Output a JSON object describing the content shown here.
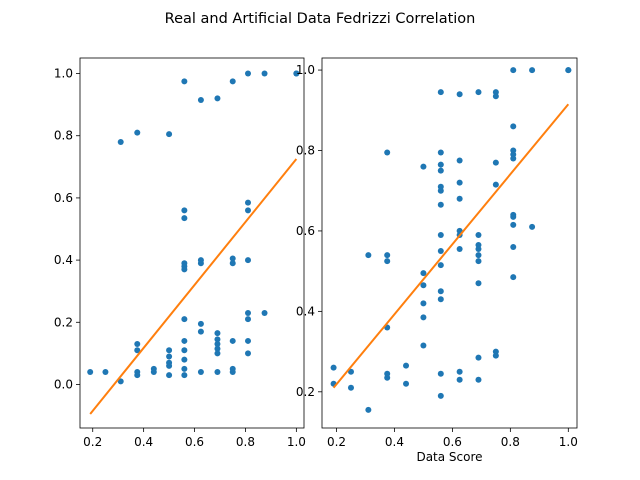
{
  "title": "Real and Artificial Data Fedrizzi Correlation",
  "colors": {
    "points": "#1f77b4",
    "fit": "#ff7f0e"
  },
  "chart_data": [
    {
      "type": "scatter",
      "xlabel": "",
      "ylabel": "",
      "xlim": [
        0.15,
        1.03
      ],
      "ylim": [
        -0.14,
        1.05
      ],
      "xticks": [
        0.2,
        0.4,
        0.6,
        0.8,
        1.0
      ],
      "xtick_labels": [
        "0.2",
        "0.4",
        "0.6",
        "0.8",
        "1.0"
      ],
      "yticks": [
        0.0,
        0.2,
        0.4,
        0.6,
        0.8,
        1.0
      ],
      "ytick_labels": [
        "0.0",
        "0.2",
        "0.4",
        "0.6",
        "0.8",
        "1.0"
      ],
      "points": [
        [
          0.19,
          0.04
        ],
        [
          0.25,
          0.04
        ],
        [
          0.31,
          0.01
        ],
        [
          0.31,
          0.78
        ],
        [
          0.375,
          0.81
        ],
        [
          0.375,
          0.04
        ],
        [
          0.375,
          0.03
        ],
        [
          0.375,
          0.11
        ],
        [
          0.375,
          0.13
        ],
        [
          0.44,
          0.05
        ],
        [
          0.44,
          0.04
        ],
        [
          0.5,
          0.805
        ],
        [
          0.5,
          0.03
        ],
        [
          0.5,
          0.06
        ],
        [
          0.5,
          0.07
        ],
        [
          0.5,
          0.09
        ],
        [
          0.5,
          0.11
        ],
        [
          0.56,
          0.975
        ],
        [
          0.56,
          0.56
        ],
        [
          0.56,
          0.535
        ],
        [
          0.56,
          0.39
        ],
        [
          0.56,
          0.38
        ],
        [
          0.56,
          0.37
        ],
        [
          0.56,
          0.21
        ],
        [
          0.56,
          0.14
        ],
        [
          0.56,
          0.11
        ],
        [
          0.56,
          0.08
        ],
        [
          0.56,
          0.05
        ],
        [
          0.56,
          0.03
        ],
        [
          0.625,
          0.915
        ],
        [
          0.625,
          0.4
        ],
        [
          0.625,
          0.39
        ],
        [
          0.625,
          0.195
        ],
        [
          0.625,
          0.17
        ],
        [
          0.625,
          0.04
        ],
        [
          0.69,
          0.92
        ],
        [
          0.69,
          0.165
        ],
        [
          0.69,
          0.145
        ],
        [
          0.69,
          0.13
        ],
        [
          0.69,
          0.115
        ],
        [
          0.69,
          0.1
        ],
        [
          0.69,
          0.04
        ],
        [
          0.75,
          0.975
        ],
        [
          0.75,
          0.405
        ],
        [
          0.75,
          0.39
        ],
        [
          0.75,
          0.14
        ],
        [
          0.75,
          0.05
        ],
        [
          0.75,
          0.04
        ],
        [
          0.81,
          1.0
        ],
        [
          0.81,
          0.585
        ],
        [
          0.81,
          0.56
        ],
        [
          0.81,
          0.4
        ],
        [
          0.81,
          0.23
        ],
        [
          0.81,
          0.21
        ],
        [
          0.81,
          0.14
        ],
        [
          0.81,
          0.1
        ],
        [
          0.875,
          1.0
        ],
        [
          0.875,
          0.23
        ],
        [
          1.0,
          1.0
        ],
        [
          1.0,
          1.0
        ]
      ],
      "fit_line": {
        "x": [
          0.19,
          1.0
        ],
        "y": [
          -0.095,
          0.725
        ]
      }
    },
    {
      "type": "scatter",
      "xlabel": "Data Score",
      "ylabel": "",
      "xlim": [
        0.15,
        1.03
      ],
      "ylim": [
        0.11,
        1.03
      ],
      "xticks": [
        0.2,
        0.4,
        0.6,
        0.8,
        1.0
      ],
      "xtick_labels": [
        "0.2",
        "0.4",
        "0.6",
        "0.8",
        "1.0"
      ],
      "yticks": [
        0.2,
        0.4,
        0.6,
        0.8,
        1.0
      ],
      "ytick_labels": [
        "0.2",
        "0.4",
        "0.6",
        "0.8",
        "1.0"
      ],
      "points": [
        [
          0.19,
          0.26
        ],
        [
          0.19,
          0.22
        ],
        [
          0.25,
          0.25
        ],
        [
          0.25,
          0.21
        ],
        [
          0.31,
          0.54
        ],
        [
          0.31,
          0.155
        ],
        [
          0.375,
          0.795
        ],
        [
          0.375,
          0.54
        ],
        [
          0.375,
          0.525
        ],
        [
          0.375,
          0.36
        ],
        [
          0.375,
          0.245
        ],
        [
          0.375,
          0.235
        ],
        [
          0.44,
          0.265
        ],
        [
          0.44,
          0.22
        ],
        [
          0.5,
          0.76
        ],
        [
          0.5,
          0.495
        ],
        [
          0.5,
          0.465
        ],
        [
          0.5,
          0.42
        ],
        [
          0.5,
          0.385
        ],
        [
          0.5,
          0.315
        ],
        [
          0.56,
          0.945
        ],
        [
          0.56,
          0.795
        ],
        [
          0.56,
          0.765
        ],
        [
          0.56,
          0.75
        ],
        [
          0.56,
          0.71
        ],
        [
          0.56,
          0.7
        ],
        [
          0.56,
          0.665
        ],
        [
          0.56,
          0.59
        ],
        [
          0.56,
          0.55
        ],
        [
          0.56,
          0.515
        ],
        [
          0.56,
          0.45
        ],
        [
          0.56,
          0.43
        ],
        [
          0.56,
          0.245
        ],
        [
          0.56,
          0.19
        ],
        [
          0.625,
          0.94
        ],
        [
          0.625,
          0.775
        ],
        [
          0.625,
          0.72
        ],
        [
          0.625,
          0.68
        ],
        [
          0.625,
          0.6
        ],
        [
          0.625,
          0.59
        ],
        [
          0.625,
          0.555
        ],
        [
          0.625,
          0.25
        ],
        [
          0.625,
          0.23
        ],
        [
          0.69,
          0.945
        ],
        [
          0.69,
          0.59
        ],
        [
          0.69,
          0.565
        ],
        [
          0.69,
          0.555
        ],
        [
          0.69,
          0.54
        ],
        [
          0.69,
          0.525
        ],
        [
          0.69,
          0.47
        ],
        [
          0.69,
          0.285
        ],
        [
          0.69,
          0.23
        ],
        [
          0.75,
          0.945
        ],
        [
          0.75,
          0.935
        ],
        [
          0.75,
          0.77
        ],
        [
          0.75,
          0.715
        ],
        [
          0.75,
          0.3
        ],
        [
          0.75,
          0.29
        ],
        [
          0.81,
          1.0
        ],
        [
          0.81,
          0.86
        ],
        [
          0.81,
          0.8
        ],
        [
          0.81,
          0.79
        ],
        [
          0.81,
          0.78
        ],
        [
          0.81,
          0.64
        ],
        [
          0.81,
          0.635
        ],
        [
          0.81,
          0.615
        ],
        [
          0.81,
          0.56
        ],
        [
          0.81,
          0.485
        ],
        [
          0.875,
          1.0
        ],
        [
          0.875,
          0.61
        ],
        [
          1.0,
          1.0
        ],
        [
          1.0,
          1.0
        ]
      ],
      "fit_line": {
        "x": [
          0.19,
          1.0
        ],
        "y": [
          0.21,
          0.915
        ]
      }
    }
  ]
}
